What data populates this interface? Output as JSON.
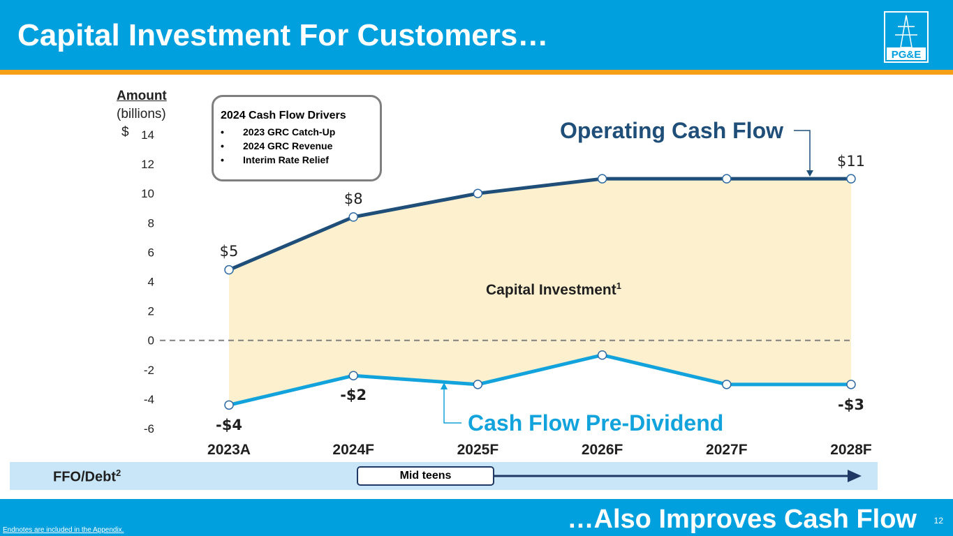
{
  "header": {
    "title": "Capital Investment For Customers…",
    "logo_text": "PG&E"
  },
  "footer": {
    "text": "…Also Improves Cash Flow",
    "page_number": "12",
    "endnote": "Endnotes are included in the Appendix."
  },
  "axis": {
    "label_main": "Amount",
    "label_sub": "(billions)",
    "unit_prefix": "$"
  },
  "drivers": {
    "title": "2024 Cash Flow Drivers",
    "items": [
      "2023 GRC Catch-Up",
      "2024 GRC Revenue",
      "Interim Rate Relief"
    ]
  },
  "ffo": {
    "label": "FFO/Debt",
    "superscript": "2",
    "value": "Mid teens"
  },
  "colors": {
    "ocf": "#1f4e79",
    "cfpd": "#12a3dc",
    "area": "#fdf0cf",
    "accent": "#f6a01a",
    "brand": "#00a0df"
  },
  "chart_data": {
    "type": "line",
    "categories": [
      "2023A",
      "2024F",
      "2025F",
      "2026F",
      "2027F",
      "2028F"
    ],
    "ylim": [
      -6,
      14
    ],
    "yticks": [
      14,
      12,
      10,
      8,
      6,
      4,
      2,
      0,
      -2,
      -4,
      -6
    ],
    "series": [
      {
        "name": "Operating Cash Flow",
        "values": [
          4.8,
          8.4,
          10,
          11,
          11,
          11
        ],
        "labels": [
          "$5",
          "$8",
          "",
          "",
          "",
          "$11"
        ]
      },
      {
        "name": "Cash Flow Pre-Dividend",
        "values": [
          -4.4,
          -2.4,
          -3,
          -1,
          -3,
          -3
        ],
        "labels": [
          "-$4",
          "-$2",
          "",
          "",
          "",
          "-$3"
        ]
      }
    ],
    "area_label": "Capital Investment",
    "area_label_sup": "1",
    "zero_line": "dashed"
  }
}
